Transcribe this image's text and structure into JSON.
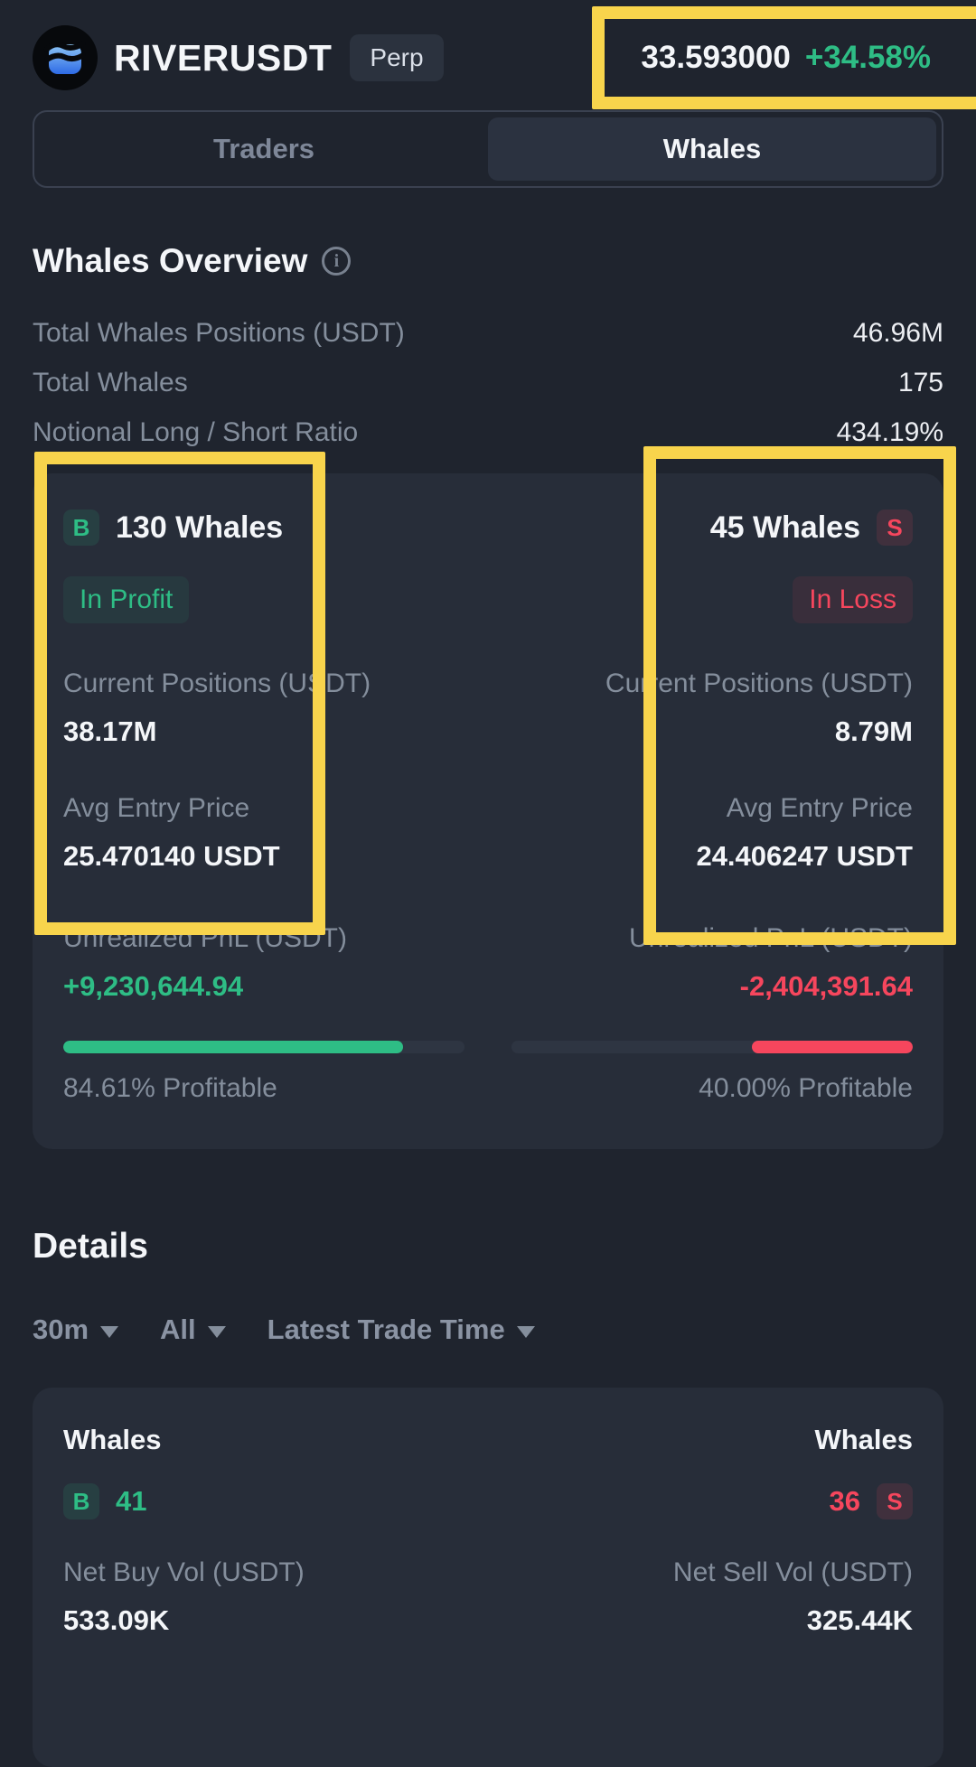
{
  "header": {
    "symbol": "RIVERUSDT",
    "contract_badge": "Perp",
    "price": "33.593000",
    "change": "+34.58%"
  },
  "tabs": [
    {
      "label": "Traders",
      "active": false
    },
    {
      "label": "Whales",
      "active": true
    }
  ],
  "overview": {
    "title": "Whales Overview",
    "stats": [
      {
        "label": "Total Whales Positions (USDT)",
        "value": "46.96M"
      },
      {
        "label": "Total Whales",
        "value": "175"
      },
      {
        "label": "Notional Long / Short Ratio",
        "value": "434.19%"
      }
    ],
    "long": {
      "side_letter": "B",
      "count": "130 Whales",
      "status": "In Profit",
      "positions_label": "Current Positions (USDT)",
      "positions": "38.17M",
      "entry_label": "Avg Entry Price",
      "entry": "25.470140 USDT",
      "pnl_label": "Unrealized PnL (USDT)",
      "pnl": "+9,230,644.94",
      "profitable_text": "84.61% Profitable",
      "fill_pct": 84.61
    },
    "short": {
      "side_letter": "S",
      "count": "45 Whales",
      "status": "In Loss",
      "positions_label": "Current Positions (USDT)",
      "positions": "8.79M",
      "entry_label": "Avg Entry Price",
      "entry": "24.406247 USDT",
      "pnl_label": "Unrealized PnL (USDT)",
      "pnl": "-2,404,391.64",
      "profitable_text": "40.00% Profitable",
      "fill_pct": 40
    }
  },
  "details": {
    "title": "Details",
    "filters": [
      {
        "label": "30m"
      },
      {
        "label": "All"
      },
      {
        "label": "Latest Trade Time"
      }
    ],
    "table": {
      "left": {
        "header": "Whales",
        "side_letter": "B",
        "count": "41",
        "vol_label": "Net Buy Vol (USDT)",
        "vol": "533.09K"
      },
      "right": {
        "header": "Whales",
        "side_letter": "S",
        "count": "36",
        "vol_label": "Net Sell Vol (USDT)",
        "vol": "325.44K"
      }
    }
  },
  "icons": {
    "logo": "river-logo-icon",
    "info": "info-icon",
    "caret": "chevron-down-icon"
  },
  "colors": {
    "positive_green": "#2EBD85",
    "negative_red": "#F6465D",
    "annotation_yellow": "#F8D44C",
    "page_background": "#1F242E",
    "card_background": "#272D39"
  }
}
